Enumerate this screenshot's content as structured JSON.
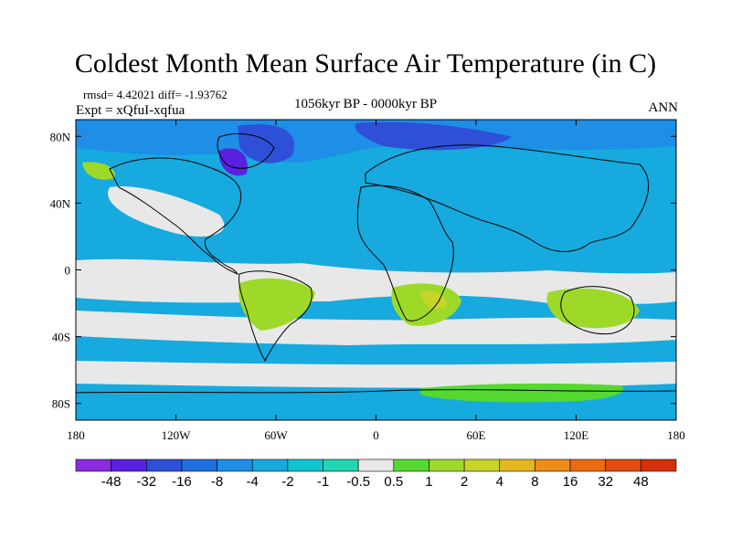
{
  "title": "Coldest Month Mean Surface Air Temperature (in C)",
  "stats": {
    "rmsd_text": "rmsd= 4.42021 diff= -1.93762"
  },
  "experiment_text": "Expt = xQfuI-xqfua",
  "period_text": "1056kyr BP - 0000kyr BP",
  "season_text": "ANN",
  "map": {
    "projection": "cylindrical-equidistant",
    "lon_range": [
      -180,
      180
    ],
    "lat_range": [
      -90,
      90
    ],
    "x_ticks": [
      {
        "lon": -180,
        "label": "180"
      },
      {
        "lon": -120,
        "label": "120W"
      },
      {
        "lon": -60,
        "label": "60W"
      },
      {
        "lon": 0,
        "label": "0"
      },
      {
        "lon": 60,
        "label": "60E"
      },
      {
        "lon": 120,
        "label": "120E"
      },
      {
        "lon": 180,
        "label": "180"
      }
    ],
    "y_ticks": [
      {
        "lat": 80,
        "label": "80N"
      },
      {
        "lat": 40,
        "label": "40N"
      },
      {
        "lat": 0,
        "label": "0"
      },
      {
        "lat": -40,
        "label": "40S"
      },
      {
        "lat": -80,
        "label": "80S"
      }
    ]
  },
  "colorbar": {
    "colors": [
      "#8a2be2",
      "#5a20e0",
      "#2e4fd8",
      "#1f6fe0",
      "#1e8ee6",
      "#16aadf",
      "#11c4d2",
      "#22d5b4",
      "#e8e8e8",
      "#55d830",
      "#9ed92a",
      "#c9d428",
      "#e5b81f",
      "#ee8c17",
      "#ec6a12",
      "#e24a0e",
      "#d7310a"
    ],
    "labels": [
      "-48",
      "-32",
      "-16",
      "-8",
      "-4",
      "-2",
      "-1",
      "-0.5",
      "0.5",
      "1",
      "2",
      "4",
      "8",
      "16",
      "32",
      "48"
    ]
  }
}
